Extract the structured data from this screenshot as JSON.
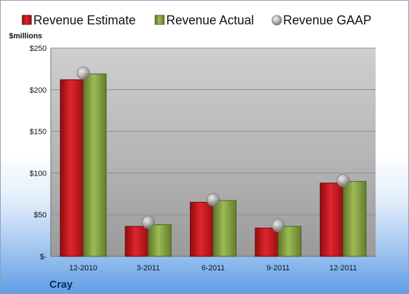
{
  "chart_data": {
    "type": "bar",
    "title": "",
    "company": "Cray",
    "unit_label": "$millions",
    "xlabel": "",
    "ylabel": "",
    "categories": [
      "12-2010",
      "3-2011",
      "6-2011",
      "9-2011",
      "12-2011"
    ],
    "series": [
      {
        "name": "Revenue Estimate",
        "kind": "bar",
        "color": "#c0151c",
        "values": [
          212,
          36,
          65,
          34,
          88
        ]
      },
      {
        "name": "Revenue Actual",
        "kind": "bar",
        "color": "#7e9c3c",
        "values": [
          219,
          38,
          67,
          36,
          90
        ]
      },
      {
        "name": "Revenue GAAP",
        "kind": "marker",
        "color": "#a8a8a8",
        "values": [
          220,
          41,
          68,
          37,
          91
        ]
      }
    ],
    "ylim": [
      0,
      250
    ],
    "yticks": [
      0,
      50,
      100,
      150,
      200,
      250
    ],
    "ytick_labels": [
      "$-",
      "$50",
      "$100",
      "$150",
      "$200",
      "$250"
    ],
    "grid": true,
    "legend_position": "top"
  }
}
